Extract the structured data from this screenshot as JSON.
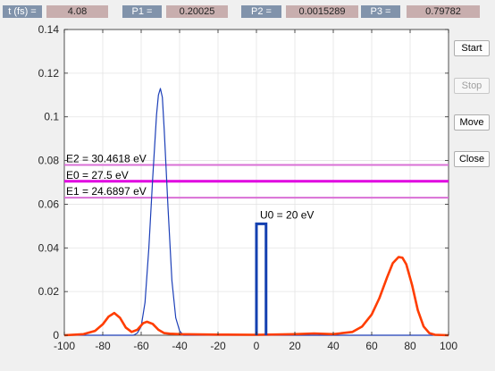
{
  "readouts": [
    {
      "label": "t (fs) =",
      "value": "4.08"
    },
    {
      "label": "P1 =",
      "value": "0.20025"
    },
    {
      "label": "P2 =",
      "value": "0.0015289"
    },
    {
      "label": "P3 =",
      "value": "0.79782"
    }
  ],
  "buttons": {
    "start": "Start",
    "stop": "Stop",
    "move": "Move",
    "close": "Close"
  },
  "chart_data": {
    "type": "line",
    "xlim": [
      -100,
      100
    ],
    "ylim": [
      0,
      0.14
    ],
    "x_ticks": [
      -100,
      -80,
      -60,
      -40,
      -20,
      0,
      20,
      40,
      60,
      80,
      100
    ],
    "y_ticks": [
      0,
      0.02,
      0.04,
      0.06,
      0.08,
      0.1,
      0.12,
      0.14
    ],
    "x_tick_labels": [
      "-100",
      "-80",
      "-60",
      "-40",
      "-20",
      "0",
      "20",
      "40",
      "60",
      "80",
      "100"
    ],
    "y_tick_labels": [
      "0",
      "0.02",
      "0.04",
      "0.06",
      "0.08",
      "0.1",
      "0.12",
      "0.14"
    ],
    "grid": true,
    "energy_levels": [
      {
        "label": "E2 = 30.4618 eV",
        "y": 0.078,
        "color": "#da70d6"
      },
      {
        "label": "E0 = 27.5 eV",
        "y": 0.0705,
        "color": "#e000e0"
      },
      {
        "label": "E1 = 24.6897 eV",
        "y": 0.063,
        "color": "#da70d6"
      }
    ],
    "barrier": {
      "label": "U0 = 20 eV",
      "x": [
        0,
        5
      ],
      "height": 0.051,
      "color": "#1440b0"
    },
    "series": [
      {
        "color": "#1c3fb8",
        "points": [
          [
            -100,
            0
          ],
          [
            -64,
            0
          ],
          [
            -62,
            0.001
          ],
          [
            -60,
            0.004
          ],
          [
            -58,
            0.015
          ],
          [
            -56,
            0.04
          ],
          [
            -54,
            0.072
          ],
          [
            -52,
            0.101
          ],
          [
            -51,
            0.11
          ],
          [
            -50,
            0.113
          ],
          [
            -49,
            0.109
          ],
          [
            -48,
            0.094
          ],
          [
            -46,
            0.058
          ],
          [
            -44,
            0.025
          ],
          [
            -42,
            0.008
          ],
          [
            -40,
            0.002
          ],
          [
            -38,
            0
          ],
          [
            100,
            0
          ]
        ]
      },
      {
        "color": "#ff3d00",
        "points": [
          [
            -100,
            0
          ],
          [
            -90,
            0.0005
          ],
          [
            -84,
            0.002
          ],
          [
            -80,
            0.005
          ],
          [
            -77,
            0.0085
          ],
          [
            -74,
            0.0102
          ],
          [
            -71,
            0.008
          ],
          [
            -68,
            0.0035
          ],
          [
            -65,
            0.0015
          ],
          [
            -62,
            0.0025
          ],
          [
            -59,
            0.0055
          ],
          [
            -57,
            0.0062
          ],
          [
            -54,
            0.0052
          ],
          [
            -51,
            0.0025
          ],
          [
            -48,
            0.001
          ],
          [
            -45,
            0.0007
          ],
          [
            -40,
            0.0005
          ],
          [
            -20,
            0.0003
          ],
          [
            0,
            0.0002
          ],
          [
            20,
            0.0005
          ],
          [
            30,
            0.0008
          ],
          [
            40,
            0.0005
          ],
          [
            50,
            0.0015
          ],
          [
            55,
            0.004
          ],
          [
            60,
            0.0095
          ],
          [
            64,
            0.017
          ],
          [
            68,
            0.0265
          ],
          [
            71,
            0.033
          ],
          [
            74,
            0.0358
          ],
          [
            76,
            0.0355
          ],
          [
            78,
            0.0325
          ],
          [
            81,
            0.023
          ],
          [
            84,
            0.0115
          ],
          [
            87,
            0.004
          ],
          [
            90,
            0.001
          ],
          [
            93,
            0.0002
          ],
          [
            100,
            0
          ]
        ]
      }
    ]
  }
}
